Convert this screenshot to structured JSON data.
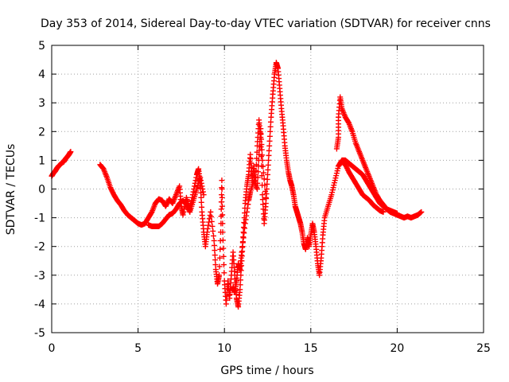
{
  "chart_data": {
    "type": "scatter",
    "title": "Day 353 of 2014, Sidereal Day-to-day VTEC variation (SDTVAR) for receiver cnns",
    "xlabel": "GPS time / hours",
    "ylabel": "SDTVAR / TECUs",
    "xlim": [
      0,
      25
    ],
    "ylim": [
      -5,
      5
    ],
    "xticks": [
      0,
      5,
      10,
      15,
      20,
      25
    ],
    "yticks": [
      -5,
      -4,
      -3,
      -2,
      -1,
      0,
      1,
      2,
      3,
      4,
      5
    ],
    "grid": true,
    "marker": "+",
    "series_color": "#ff0000",
    "series": [
      {
        "name": "segment-1",
        "points": [
          [
            0.0,
            0.45
          ],
          [
            0.1,
            0.55
          ],
          [
            0.2,
            0.62
          ],
          [
            0.3,
            0.72
          ],
          [
            0.4,
            0.8
          ],
          [
            0.5,
            0.85
          ],
          [
            0.6,
            0.92
          ],
          [
            0.7,
            0.95
          ],
          [
            0.8,
            1.05
          ],
          [
            0.9,
            1.12
          ],
          [
            1.0,
            1.2
          ],
          [
            1.1,
            1.3
          ]
        ]
      },
      {
        "name": "segment-2",
        "points": [
          [
            2.8,
            0.85
          ],
          [
            3.0,
            0.7
          ],
          [
            3.2,
            0.4
          ],
          [
            3.4,
            0.05
          ],
          [
            3.6,
            -0.2
          ],
          [
            3.8,
            -0.4
          ],
          [
            4.0,
            -0.55
          ],
          [
            4.2,
            -0.75
          ],
          [
            4.4,
            -0.9
          ],
          [
            4.6,
            -1.0
          ],
          [
            4.8,
            -1.1
          ],
          [
            5.0,
            -1.2
          ],
          [
            5.2,
            -1.25
          ],
          [
            5.4,
            -1.2
          ],
          [
            5.6,
            -1.0
          ],
          [
            5.8,
            -0.8
          ],
          [
            6.0,
            -0.5
          ],
          [
            6.2,
            -0.35
          ],
          [
            6.4,
            -0.4
          ],
          [
            6.6,
            -0.6
          ],
          [
            6.8,
            -0.35
          ],
          [
            7.0,
            -0.5
          ],
          [
            7.2,
            -0.2
          ],
          [
            7.4,
            0.1
          ],
          [
            7.5,
            -0.6
          ],
          [
            7.6,
            -0.9
          ],
          [
            7.8,
            -0.3
          ],
          [
            8.0,
            -0.7
          ],
          [
            8.2,
            -0.1
          ],
          [
            8.4,
            0.5
          ],
          [
            8.5,
            0.7
          ],
          [
            8.6,
            0.2
          ],
          [
            8.7,
            -0.8
          ],
          [
            8.8,
            -1.5
          ],
          [
            8.9,
            -2.0
          ],
          [
            9.0,
            -1.5
          ],
          [
            9.2,
            -0.8
          ],
          [
            9.4,
            -1.8
          ],
          [
            9.5,
            -2.8
          ],
          [
            9.6,
            -3.3
          ],
          [
            9.7,
            -3.0
          ],
          [
            9.8,
            -1.2
          ],
          [
            9.85,
            0.3
          ],
          [
            9.9,
            -1.5
          ],
          [
            10.0,
            -3.2
          ],
          [
            10.1,
            -4.0
          ],
          [
            10.2,
            -3.2
          ],
          [
            10.3,
            -3.8
          ],
          [
            10.4,
            -3.0
          ],
          [
            10.5,
            -2.2
          ],
          [
            10.6,
            -3.0
          ],
          [
            10.7,
            -3.8
          ],
          [
            10.8,
            -4.1
          ],
          [
            10.9,
            -3.5
          ],
          [
            11.0,
            -2.5
          ],
          [
            11.1,
            -1.5
          ],
          [
            11.2,
            -0.5
          ],
          [
            11.3,
            0.1
          ],
          [
            11.4,
            0.5
          ],
          [
            11.5,
            1.2
          ],
          [
            11.6,
            0.3
          ],
          [
            11.7,
            0.8
          ],
          [
            11.8,
            0.2
          ],
          [
            11.9,
            1.5
          ],
          [
            12.0,
            2.4
          ],
          [
            12.1,
            1.8
          ],
          [
            12.2,
            -0.2
          ],
          [
            12.3,
            -1.2
          ],
          [
            12.4,
            -0.5
          ],
          [
            12.5,
            0.5
          ],
          [
            12.6,
            1.5
          ],
          [
            12.7,
            2.5
          ],
          [
            12.8,
            3.3
          ],
          [
            12.9,
            4.0
          ],
          [
            13.0,
            4.4
          ],
          [
            13.1,
            4.2
          ],
          [
            13.2,
            3.5
          ],
          [
            13.3,
            2.8
          ],
          [
            13.4,
            2.2
          ],
          [
            13.5,
            1.5
          ],
          [
            13.6,
            1.0
          ],
          [
            13.7,
            0.6
          ],
          [
            13.8,
            0.3
          ],
          [
            13.9,
            0.1
          ],
          [
            14.0,
            -0.2
          ],
          [
            14.1,
            -0.6
          ],
          [
            14.2,
            -0.8
          ],
          [
            14.3,
            -1.0
          ],
          [
            14.4,
            -1.2
          ],
          [
            14.5,
            -1.5
          ],
          [
            14.6,
            -1.9
          ],
          [
            14.7,
            -2.1
          ],
          [
            14.8,
            -1.7
          ],
          [
            14.9,
            -2.0
          ],
          [
            15.0,
            -1.6
          ],
          [
            15.1,
            -1.2
          ],
          [
            15.2,
            -1.5
          ],
          [
            15.3,
            -2.0
          ],
          [
            15.4,
            -2.6
          ],
          [
            15.5,
            -3.0
          ],
          [
            15.6,
            -2.4
          ],
          [
            15.7,
            -1.6
          ],
          [
            15.8,
            -1.0
          ],
          [
            16.0,
            -0.6
          ],
          [
            16.2,
            -0.2
          ],
          [
            16.4,
            0.3
          ],
          [
            16.6,
            0.8
          ],
          [
            16.8,
            1.0
          ],
          [
            17.0,
            1.0
          ],
          [
            17.2,
            0.9
          ],
          [
            17.4,
            0.8
          ],
          [
            17.6,
            0.7
          ],
          [
            17.8,
            0.6
          ],
          [
            18.0,
            0.5
          ],
          [
            18.2,
            0.3
          ],
          [
            18.4,
            0.1
          ],
          [
            18.6,
            -0.1
          ],
          [
            18.8,
            -0.3
          ],
          [
            19.0,
            -0.5
          ],
          [
            19.2,
            -0.6
          ],
          [
            19.4,
            -0.7
          ],
          [
            19.6,
            -0.8
          ],
          [
            19.8,
            -0.85
          ],
          [
            20.0,
            -0.9
          ],
          [
            20.2,
            -0.95
          ],
          [
            20.4,
            -1.0
          ],
          [
            20.6,
            -0.95
          ],
          [
            20.8,
            -1.0
          ],
          [
            21.0,
            -0.95
          ],
          [
            21.2,
            -0.9
          ],
          [
            21.4,
            -0.8
          ]
        ]
      },
      {
        "name": "segment-3",
        "points": [
          [
            5.6,
            -1.25
          ],
          [
            5.8,
            -1.3
          ],
          [
            6.0,
            -1.3
          ],
          [
            6.2,
            -1.3
          ],
          [
            6.4,
            -1.2
          ],
          [
            6.6,
            -1.05
          ],
          [
            6.8,
            -0.9
          ],
          [
            7.0,
            -0.85
          ],
          [
            7.2,
            -0.7
          ],
          [
            7.4,
            -0.5
          ],
          [
            7.6,
            -0.4
          ],
          [
            7.8,
            -0.55
          ],
          [
            8.0,
            -0.8
          ],
          [
            8.2,
            -0.4
          ],
          [
            8.4,
            0.0
          ],
          [
            8.6,
            0.4
          ],
          [
            8.8,
            -0.2
          ]
        ]
      },
      {
        "name": "segment-4",
        "points": [
          [
            10.5,
            -3.4
          ],
          [
            10.6,
            -3.6
          ],
          [
            10.7,
            -3.2
          ],
          [
            10.8,
            -2.6
          ],
          [
            10.9,
            -2.8
          ],
          [
            11.0,
            -2.2
          ],
          [
            11.2,
            -1.2
          ],
          [
            11.4,
            -0.4
          ],
          [
            11.5,
            -0.1
          ],
          [
            11.7,
            0.3
          ],
          [
            11.9,
            0.0
          ],
          [
            12.0,
            1.2
          ],
          [
            12.1,
            2.1
          ],
          [
            12.2,
            1.0
          ],
          [
            12.4,
            -0.3
          ]
        ]
      },
      {
        "name": "segment-5",
        "points": [
          [
            16.5,
            1.4
          ],
          [
            16.6,
            1.8
          ],
          [
            16.6,
            2.5
          ],
          [
            16.7,
            3.2
          ],
          [
            16.8,
            2.8
          ],
          [
            17.0,
            2.5
          ],
          [
            17.2,
            2.3
          ],
          [
            17.4,
            2.0
          ],
          [
            17.6,
            1.6
          ],
          [
            17.8,
            1.3
          ],
          [
            18.0,
            1.0
          ],
          [
            18.2,
            0.7
          ],
          [
            18.4,
            0.4
          ],
          [
            18.6,
            0.1
          ],
          [
            18.8,
            -0.2
          ],
          [
            19.0,
            -0.4
          ],
          [
            19.2,
            -0.55
          ],
          [
            19.4,
            -0.7
          ],
          [
            19.6,
            -0.75
          ],
          [
            19.8,
            -0.8
          ],
          [
            20.0,
            -0.85
          ]
        ]
      },
      {
        "name": "segment-6",
        "points": [
          [
            16.6,
            0.8
          ],
          [
            16.8,
            0.95
          ],
          [
            17.0,
            0.85
          ],
          [
            17.2,
            0.6
          ],
          [
            17.4,
            0.4
          ],
          [
            17.6,
            0.2
          ],
          [
            17.8,
            0.0
          ],
          [
            18.0,
            -0.2
          ],
          [
            18.2,
            -0.3
          ],
          [
            18.4,
            -0.4
          ],
          [
            18.6,
            -0.55
          ],
          [
            18.8,
            -0.65
          ],
          [
            19.0,
            -0.75
          ],
          [
            19.2,
            -0.8
          ]
        ]
      }
    ]
  }
}
